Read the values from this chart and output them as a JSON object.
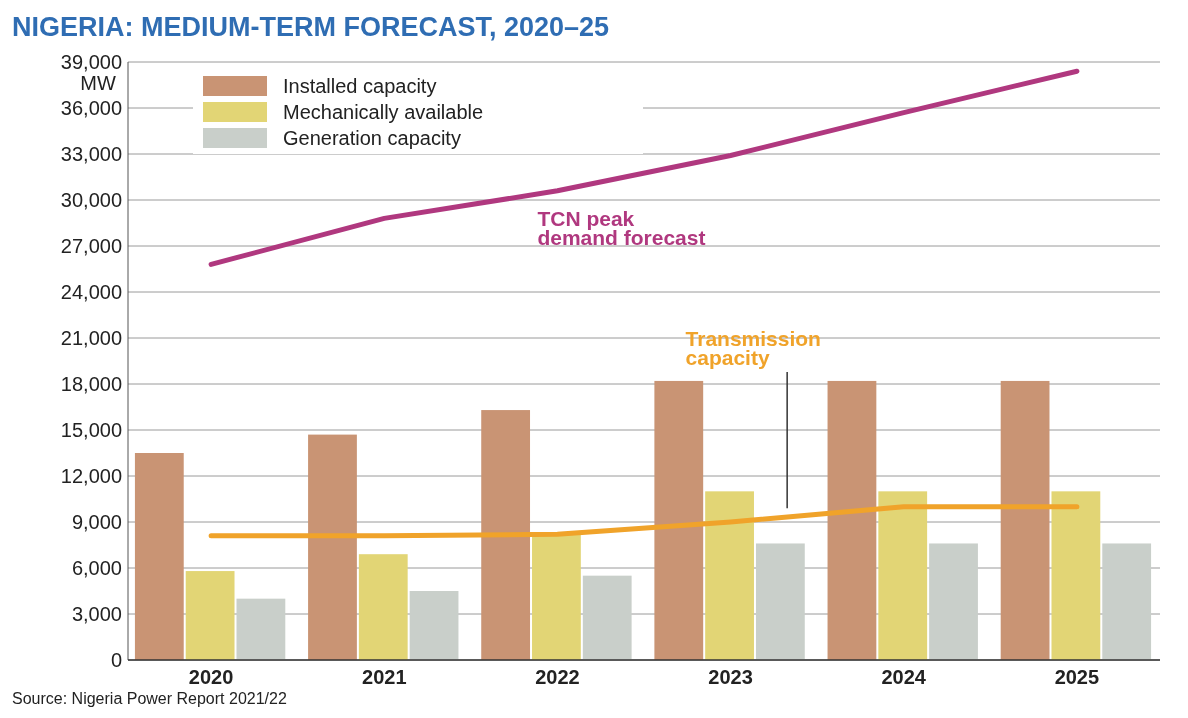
{
  "chart_data": {
    "type": "bar",
    "title": "NIGERIA: MEDIUM-TERM FORECAST, 2020–25",
    "ylabel": "MW",
    "categories": [
      "2020",
      "2021",
      "2022",
      "2023",
      "2024",
      "2025"
    ],
    "series": [
      {
        "name": "Installed capacity",
        "color": "#c99474",
        "values": [
          13500,
          14700,
          16300,
          18200,
          18200,
          18200
        ]
      },
      {
        "name": "Mechanically available",
        "color": "#e2d575",
        "values": [
          5800,
          6900,
          8200,
          11000,
          11000,
          11000
        ]
      },
      {
        "name": "Generation capacity",
        "color": "#c9cfca",
        "values": [
          4000,
          4500,
          5500,
          7600,
          7600,
          7600
        ]
      },
      {
        "name": "TCN peak demand forecast",
        "type": "line",
        "color": "#b0387f",
        "values": [
          25800,
          28800,
          30600,
          32900,
          35700,
          38400
        ]
      },
      {
        "name": "Transmission capacity",
        "type": "line",
        "color": "#f0a32a",
        "values": [
          8100,
          8100,
          8200,
          9000,
          10000,
          10000
        ]
      }
    ],
    "ylim": [
      0,
      39000
    ],
    "yticks": [
      {
        "value": 0,
        "label": "0"
      },
      {
        "value": 3000,
        "label": "3,000"
      },
      {
        "value": 6000,
        "label": "6,000"
      },
      {
        "value": 9000,
        "label": "9,000"
      },
      {
        "value": 12000,
        "label": "12,000"
      },
      {
        "value": 15000,
        "label": "15,000"
      },
      {
        "value": 18000,
        "label": "18,000"
      },
      {
        "value": 21000,
        "label": "21,000"
      },
      {
        "value": 24000,
        "label": "24,000"
      },
      {
        "value": 27000,
        "label": "27,000"
      },
      {
        "value": 30000,
        "label": "30,000"
      },
      {
        "value": 33000,
        "label": "33,000"
      },
      {
        "value": 36000,
        "label": "36,000"
      },
      {
        "value": 39000,
        "label": "39,000"
      }
    ],
    "grid": "y",
    "legend": "top left",
    "marker": "none",
    "line_style": "solid",
    "annotations": [
      "Source: Nigeria Power Report 2021/22"
    ]
  }
}
